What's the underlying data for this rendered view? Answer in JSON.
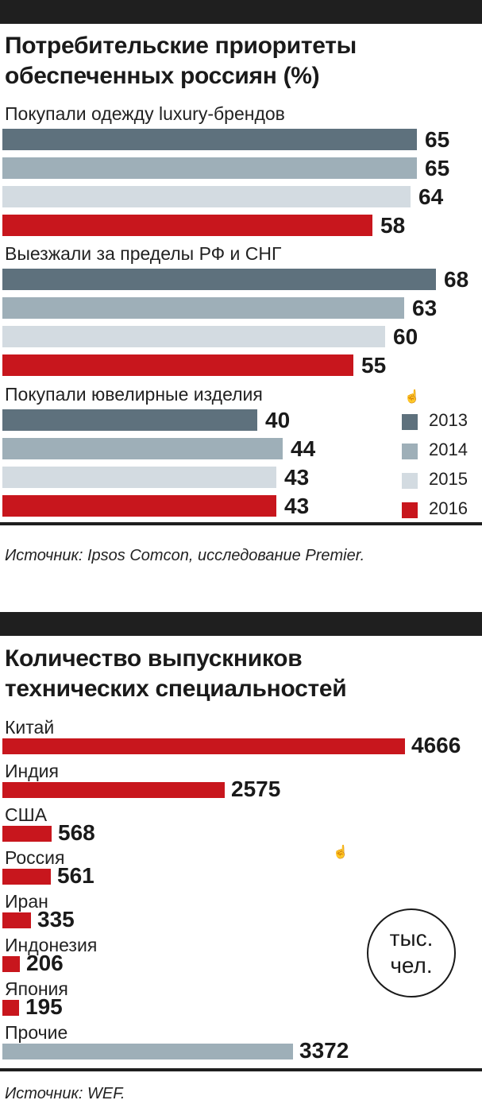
{
  "chart_data": [
    {
      "type": "bar",
      "title": "Потребительские приоритеты обеспеченных россиян  (%)",
      "title_lines": [
        "Потребительские приоритеты",
        "обеспеченных россиян  (%)"
      ],
      "categories": [
        "Покупали одежду luxury-брендов",
        "Выезжали за пределы РФ и СНГ",
        "Покупали ювелирные изделия"
      ],
      "series": [
        {
          "name": "2013",
          "color": "#5e717d",
          "values": [
            65,
            68,
            40
          ]
        },
        {
          "name": "2014",
          "color": "#9eafb8",
          "values": [
            65,
            63,
            44
          ]
        },
        {
          "name": "2015",
          "color": "#d3dbe1",
          "values": [
            64,
            60,
            43
          ]
        },
        {
          "name": "2016",
          "color": "#c8161d",
          "values": [
            58,
            55,
            43
          ]
        }
      ],
      "legend_position": "right",
      "source": "Источник: Ipsos Comcon, исследование Premier."
    },
    {
      "type": "bar",
      "title": "Количество выпускников технических специальностей",
      "title_lines": [
        "Количество выпускников",
        "технических специальностей"
      ],
      "categories": [
        "Китай",
        "Индия",
        "США",
        "Россия",
        "Иран",
        "Индонезия",
        "Япония",
        "Прочие"
      ],
      "values": [
        4666,
        2575,
        568,
        561,
        335,
        206,
        195,
        3372
      ],
      "colors": [
        "#c8161d",
        "#c8161d",
        "#c8161d",
        "#c8161d",
        "#c8161d",
        "#c8161d",
        "#c8161d",
        "#9eafb8"
      ],
      "unit_lines": [
        "тыс.",
        "чел."
      ],
      "source": "Источник: WEF."
    }
  ],
  "icons": [
    "hand-cursor-icon"
  ]
}
